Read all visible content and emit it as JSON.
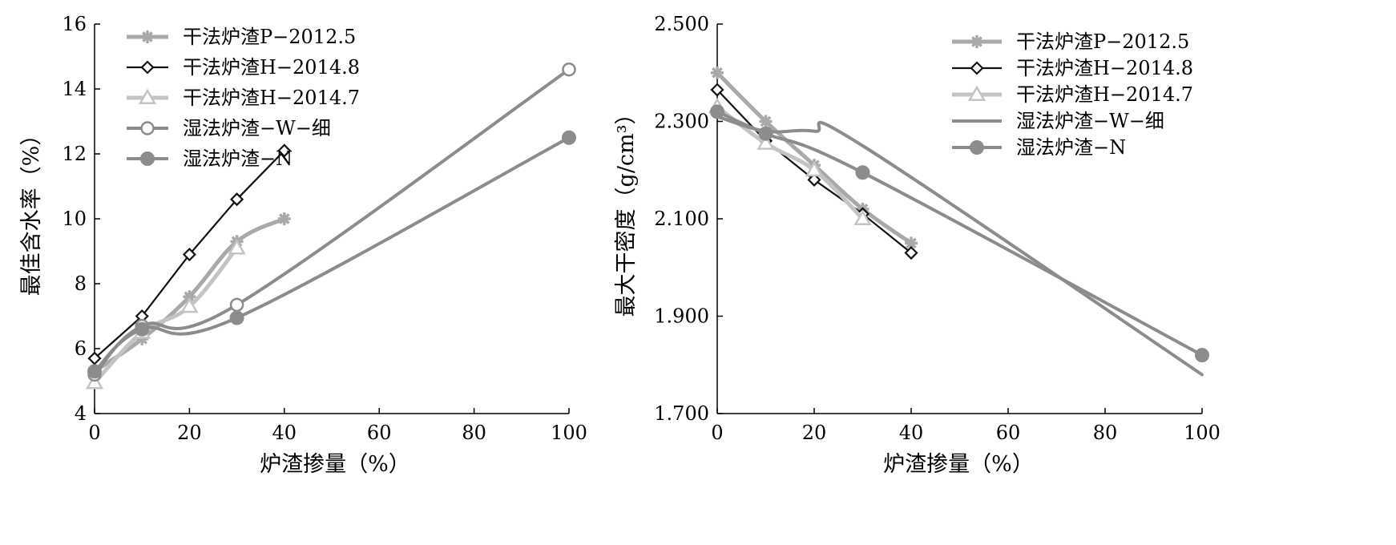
{
  "chart_data": [
    {
      "type": "line",
      "xlabel": "炉渣掺量（%）",
      "ylabel": "最佳含水率（%）",
      "xlim": [
        0,
        100
      ],
      "ylim": [
        4,
        16
      ],
      "xticks": [
        "0",
        "20",
        "40",
        "60",
        "80",
        "100"
      ],
      "yticks": [
        "4",
        "6",
        "8",
        "10",
        "12",
        "14",
        "16"
      ],
      "legend_position": "top-left",
      "series": [
        {
          "name": "干法炉渣P−2012.5",
          "marker": "asterisk",
          "color": "#a9a9a9",
          "width": 5,
          "x": [
            0,
            10,
            20,
            30,
            40
          ],
          "y": [
            5.3,
            6.3,
            7.6,
            9.3,
            10.0
          ]
        },
        {
          "name": "干法炉渣H−2014.8",
          "marker": "diamond",
          "color": "#111111",
          "width": 2.2,
          "x": [
            0,
            10,
            20,
            30,
            40
          ],
          "y": [
            5.7,
            7.0,
            8.9,
            10.6,
            12.1
          ]
        },
        {
          "name": "干法炉渣H−2014.7",
          "marker": "triangle",
          "color": "#c4c4c4",
          "width": 5,
          "x": [
            0,
            10,
            20,
            30
          ],
          "y": [
            4.95,
            6.5,
            7.3,
            9.1
          ]
        },
        {
          "name": "湿法炉渣−W−细",
          "marker": "circle-open",
          "color": "#8c8c8c",
          "width": 4,
          "x": [
            0,
            10,
            30,
            100
          ],
          "y": [
            5.2,
            6.7,
            7.35,
            14.6
          ]
        },
        {
          "name": "湿法炉渣−N",
          "marker": "circle-filled",
          "color": "#8c8c8c",
          "width": 4,
          "x": [
            0,
            10,
            30,
            100
          ],
          "y": [
            5.3,
            6.6,
            6.95,
            12.5
          ]
        }
      ]
    },
    {
      "type": "line",
      "xlabel": "炉渣掺量（%）",
      "ylabel": "最大干密度（g/cm³）",
      "xlim": [
        0,
        100
      ],
      "ylim": [
        1.7,
        2.5
      ],
      "xticks": [
        "0",
        "20",
        "40",
        "60",
        "80",
        "100"
      ],
      "yticks": [
        "1.700",
        "1.900",
        "2.100",
        "2.300",
        "2.500"
      ],
      "legend_position": "top-right",
      "series": [
        {
          "name": "干法炉渣P−2012.5",
          "marker": "asterisk",
          "color": "#a9a9a9",
          "width": 5,
          "x": [
            0,
            10,
            20,
            30,
            40
          ],
          "y": [
            2.4,
            2.3,
            2.21,
            2.12,
            2.05
          ]
        },
        {
          "name": "干法炉渣H−2014.8",
          "marker": "diamond",
          "color": "#111111",
          "width": 2.2,
          "x": [
            0,
            10,
            20,
            30,
            40
          ],
          "y": [
            2.365,
            2.26,
            2.18,
            2.11,
            2.03
          ]
        },
        {
          "name": "干法炉渣H−2014.7",
          "marker": "triangle",
          "color": "#c4c4c4",
          "width": 5,
          "x": [
            0,
            10,
            20,
            30
          ],
          "y": [
            2.33,
            2.255,
            2.2,
            2.1
          ]
        },
        {
          "name": "湿法炉渣−W−细",
          "marker": "none",
          "color": "#8c8c8c",
          "width": 4,
          "x": [
            0,
            10,
            20,
            30,
            100
          ],
          "y": [
            2.31,
            2.28,
            2.28,
            2.25,
            1.78
          ]
        },
        {
          "name": "湿法炉渣−N",
          "marker": "circle-filled",
          "color": "#8c8c8c",
          "width": 4,
          "x": [
            0,
            10,
            30,
            100
          ],
          "y": [
            2.32,
            2.275,
            2.195,
            1.82
          ]
        }
      ]
    }
  ]
}
